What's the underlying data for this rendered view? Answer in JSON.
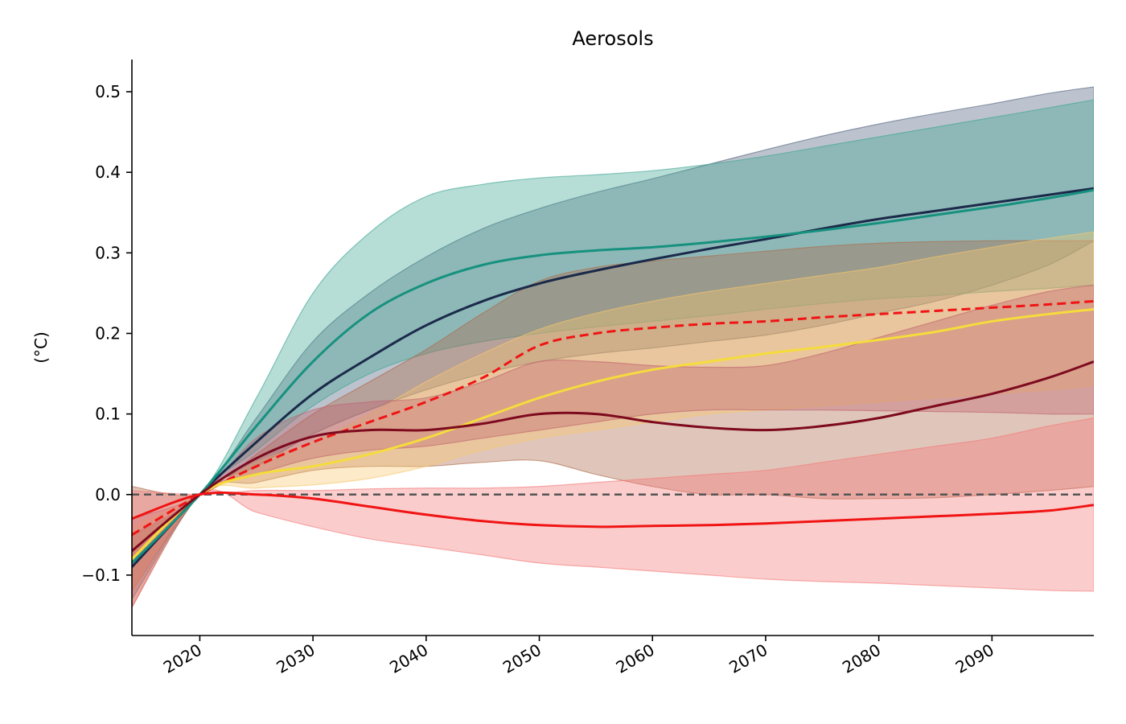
{
  "chart_data": {
    "type": "area",
    "title": "Aerosols",
    "xlabel": "",
    "ylabel": "(°C)",
    "xlim": [
      2014,
      2099
    ],
    "ylim": [
      -0.175,
      0.54
    ],
    "x_ticks": [
      2020,
      2030,
      2040,
      2050,
      2060,
      2070,
      2080,
      2090
    ],
    "x_tick_labels": [
      "2020",
      "2030",
      "2040",
      "2050",
      "2060",
      "2070",
      "2080",
      "2090"
    ],
    "y_ticks": [
      -0.1,
      0.0,
      0.1,
      0.2,
      0.3,
      0.4,
      0.5
    ],
    "y_tick_labels": [
      "−0.1",
      "0.0",
      "0.1",
      "0.2",
      "0.3",
      "0.4",
      "0.5"
    ],
    "grid": false,
    "legend": "none",
    "reference_line": {
      "y": 0,
      "style": "dashed",
      "color": "#555555"
    },
    "x": [
      2014,
      2020,
      2025,
      2030,
      2035,
      2040,
      2045,
      2050,
      2055,
      2060,
      2065,
      2070,
      2075,
      2080,
      2085,
      2090,
      2095,
      2099
    ],
    "series": [
      {
        "color": "#1b2a4a",
        "line_style": "solid",
        "band_color": "#51627e",
        "mean": [
          -0.09,
          0.0,
          0.065,
          0.125,
          0.17,
          0.21,
          0.24,
          0.262,
          0.278,
          0.292,
          0.305,
          0.317,
          0.33,
          0.342,
          0.352,
          0.362,
          0.372,
          0.38
        ],
        "lower": [
          -0.13,
          0.0,
          0.035,
          0.075,
          0.105,
          0.13,
          0.15,
          0.165,
          0.175,
          0.182,
          0.19,
          0.198,
          0.21,
          0.225,
          0.24,
          0.26,
          0.285,
          0.315
        ],
        "upper": [
          -0.05,
          0.0,
          0.095,
          0.19,
          0.25,
          0.295,
          0.33,
          0.355,
          0.375,
          0.392,
          0.41,
          0.428,
          0.445,
          0.46,
          0.473,
          0.485,
          0.498,
          0.506
        ]
      },
      {
        "color": "#17917f",
        "line_style": "solid",
        "band_color": "#3ea593",
        "mean": [
          -0.085,
          0.0,
          0.085,
          0.165,
          0.225,
          0.262,
          0.285,
          0.297,
          0.303,
          0.307,
          0.313,
          0.32,
          0.328,
          0.337,
          0.347,
          0.357,
          0.368,
          0.378
        ],
        "lower": [
          -0.12,
          0.0,
          0.055,
          0.11,
          0.15,
          0.175,
          0.19,
          0.2,
          0.208,
          0.215,
          0.222,
          0.23,
          0.237,
          0.243,
          0.247,
          0.252,
          0.256,
          0.26
        ],
        "upper": [
          -0.05,
          0.0,
          0.12,
          0.25,
          0.325,
          0.37,
          0.385,
          0.393,
          0.397,
          0.402,
          0.41,
          0.42,
          0.432,
          0.444,
          0.456,
          0.468,
          0.48,
          0.49
        ]
      },
      {
        "color": "#f01414",
        "line_style": "dashed",
        "band_color": "#ad6a4a",
        "mean": [
          -0.05,
          0.0,
          0.035,
          0.065,
          0.09,
          0.115,
          0.145,
          0.185,
          0.2,
          0.207,
          0.212,
          0.215,
          0.22,
          0.224,
          0.228,
          0.232,
          0.236,
          0.24
        ],
        "lower": [
          -0.14,
          0.0,
          0.015,
          0.03,
          0.035,
          0.035,
          0.04,
          0.042,
          0.025,
          0.01,
          0.0,
          0.0,
          -0.005,
          -0.005,
          -0.004,
          0.0,
          0.005,
          0.01
        ],
        "upper": [
          0.01,
          0.0,
          0.05,
          0.1,
          0.14,
          0.18,
          0.225,
          0.265,
          0.282,
          0.29,
          0.296,
          0.302,
          0.308,
          0.312,
          0.314,
          0.315,
          0.315,
          0.315
        ]
      },
      {
        "color": "#f5dc3c",
        "line_style": "solid",
        "band_color": "#f7c86e",
        "mean": [
          -0.08,
          0.0,
          0.025,
          0.035,
          0.05,
          0.07,
          0.095,
          0.12,
          0.14,
          0.155,
          0.165,
          0.175,
          0.183,
          0.192,
          0.202,
          0.215,
          0.224,
          0.23
        ],
        "lower": [
          -0.12,
          0.0,
          0.008,
          0.012,
          0.02,
          0.035,
          0.055,
          0.07,
          0.08,
          0.09,
          0.1,
          0.105,
          0.11,
          0.115,
          0.12,
          0.125,
          0.13,
          0.135
        ],
        "upper": [
          -0.04,
          0.0,
          0.04,
          0.065,
          0.1,
          0.14,
          0.175,
          0.205,
          0.225,
          0.24,
          0.252,
          0.262,
          0.272,
          0.282,
          0.295,
          0.307,
          0.318,
          0.326
        ]
      },
      {
        "color": "#7d0a1e",
        "line_style": "solid",
        "band_color": "#c0646e",
        "mean": [
          -0.07,
          0.0,
          0.045,
          0.072,
          0.08,
          0.08,
          0.088,
          0.1,
          0.1,
          0.09,
          0.083,
          0.08,
          0.085,
          0.095,
          0.11,
          0.125,
          0.145,
          0.165
        ],
        "lower": [
          -0.12,
          0.0,
          0.025,
          0.045,
          0.055,
          0.06,
          0.07,
          0.08,
          0.09,
          0.1,
          0.105,
          0.105,
          0.105,
          0.104,
          0.103,
          0.102,
          0.1,
          0.1
        ],
        "upper": [
          -0.03,
          0.0,
          0.07,
          0.105,
          0.115,
          0.12,
          0.14,
          0.165,
          0.165,
          0.16,
          0.158,
          0.16,
          0.175,
          0.195,
          0.215,
          0.235,
          0.252,
          0.26
        ]
      },
      {
        "color": "#f01414",
        "line_style": "solid",
        "band_color": "#f47a7a",
        "mean": [
          -0.03,
          0.0,
          0.0,
          -0.005,
          -0.015,
          -0.025,
          -0.033,
          -0.038,
          -0.04,
          -0.039,
          -0.038,
          -0.036,
          -0.033,
          -0.03,
          -0.027,
          -0.024,
          -0.02,
          -0.013
        ],
        "lower": [
          -0.14,
          0.0,
          -0.022,
          -0.04,
          -0.055,
          -0.065,
          -0.075,
          -0.085,
          -0.09,
          -0.095,
          -0.1,
          -0.105,
          -0.108,
          -0.11,
          -0.113,
          -0.116,
          -0.119,
          -0.12
        ],
        "upper": [
          0.005,
          0.0,
          0.005,
          0.005,
          0.007,
          0.008,
          0.008,
          0.01,
          0.015,
          0.02,
          0.025,
          0.03,
          0.04,
          0.05,
          0.06,
          0.07,
          0.085,
          0.095
        ]
      }
    ]
  }
}
